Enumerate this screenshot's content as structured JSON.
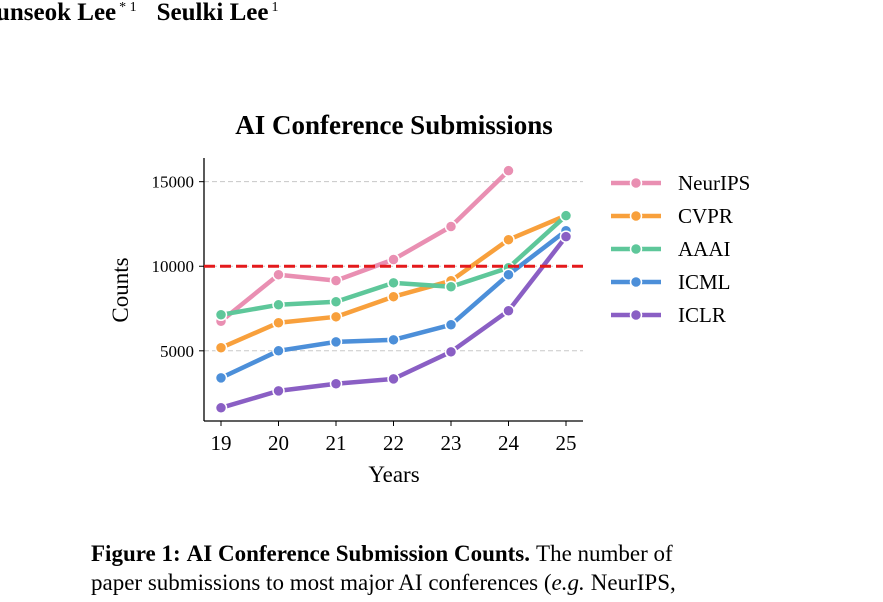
{
  "header": {
    "authors": [
      {
        "name": "unseok Lee",
        "mark": "* 1"
      },
      {
        "name": "Seulki Lee",
        "mark": "1"
      }
    ]
  },
  "chart_data": {
    "type": "line",
    "title": "AI Conference Submissions",
    "x_label": "Years",
    "y_label": "Counts",
    "categories": [
      "19",
      "20",
      "21",
      "22",
      "23",
      "24",
      "25"
    ],
    "series": [
      {
        "name": "NeurIPS",
        "color": "#e98fb2",
        "values": [
          6750,
          9500,
          9150,
          10400,
          12350,
          15650,
          null
        ]
      },
      {
        "name": "CVPR",
        "color": "#f8a03c",
        "values": [
          5180,
          6660,
          7010,
          8200,
          9140,
          11570,
          13000
        ]
      },
      {
        "name": "AAAI",
        "color": "#5ec79a",
        "values": [
          7130,
          7720,
          7900,
          9020,
          8790,
          9910,
          12990
        ]
      },
      {
        "name": "ICML",
        "color": "#4c8fd9",
        "values": [
          3400,
          5000,
          5530,
          5650,
          6540,
          9500,
          12100
        ]
      },
      {
        "name": "ICLR",
        "color": "#8a5fc4",
        "values": [
          1630,
          2630,
          3050,
          3340,
          4940,
          7370,
          11750
        ]
      }
    ],
    "ylim": [
      850,
      16400
    ],
    "yticks": [
      5000,
      10000,
      15000
    ],
    "grid": true,
    "legend": "outside-right",
    "reference_line": {
      "value": 10000,
      "color": "#e41a1c"
    }
  },
  "caption": {
    "label": "Figure 1:",
    "title": "AI Conference Submission Counts.",
    "text": [
      "The number of",
      "paper submissions to most major AI conferences (",
      "e.g.",
      "NeurIPS,"
    ]
  }
}
